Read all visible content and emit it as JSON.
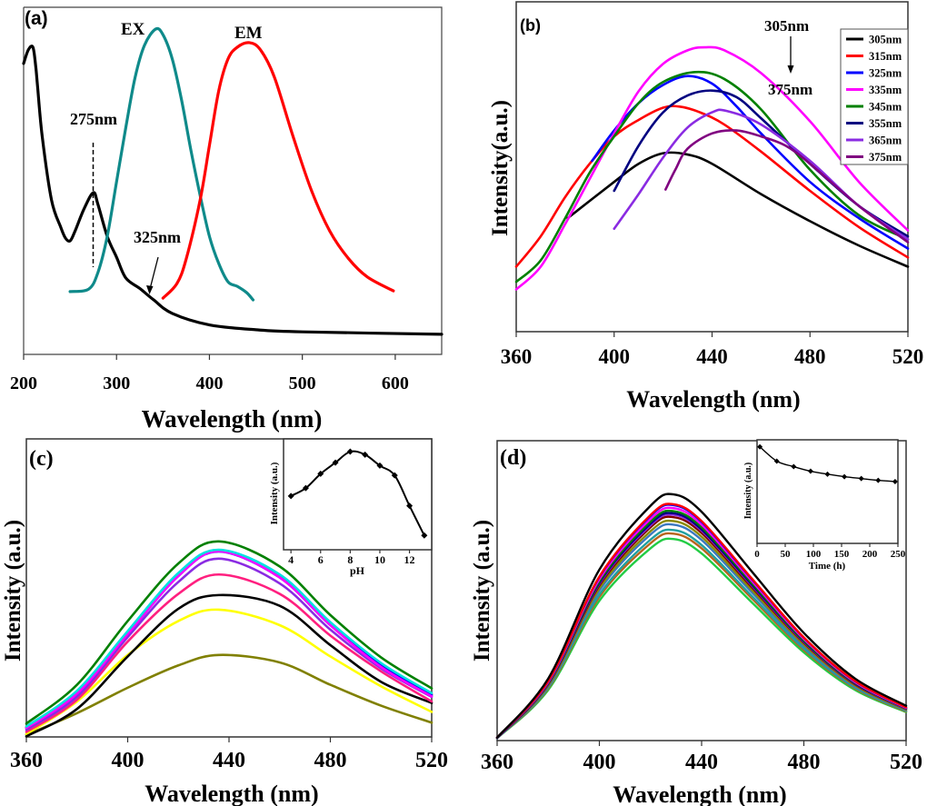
{
  "chart_data": [
    {
      "id": "a",
      "type": "line",
      "panel_label": "(a)",
      "xlabel": "Wavelength (nm)",
      "ylabel": "",
      "xlim": [
        200,
        650
      ],
      "ylim": [
        0,
        100
      ],
      "xticks": [
        200,
        300,
        400,
        500,
        600
      ],
      "grid": false,
      "annotations": {
        "ex": "EX",
        "em": "EM",
        "peak1": "275nm",
        "peak2": "325nm"
      },
      "series": [
        {
          "color": "#000000",
          "x": [
            200,
            205,
            210,
            213,
            215,
            220,
            230,
            240,
            245,
            250,
            255,
            265,
            275,
            280,
            290,
            300,
            310,
            325,
            340,
            360,
            400,
            450,
            500,
            650
          ],
          "y": [
            83.8,
            87.7,
            88.5,
            83,
            77.2,
            62.8,
            44.5,
            36.6,
            33.5,
            32.7,
            35.3,
            41.9,
            46.6,
            43.2,
            34.0,
            28,
            22,
            19,
            15.7,
            11.8,
            8.5,
            7.1,
            6.5,
            5.8
          ]
        },
        {
          "color": "#0f8a8a",
          "x": [
            250,
            270,
            280,
            290,
            300,
            310,
            320,
            330,
            342,
            350,
            360,
            370,
            380,
            390,
            400,
            410,
            420,
            430,
            440,
            447
          ],
          "y": [
            18.1,
            18.8,
            23.6,
            34.0,
            49.7,
            65.4,
            79.8,
            89.0,
            93.7,
            92.1,
            85.1,
            73.3,
            58.9,
            45.8,
            34.0,
            26.2,
            20.9,
            19.6,
            17.8,
            15.7
          ]
        },
        {
          "color": "#ff0000",
          "x": [
            350,
            365,
            375,
            390,
            400,
            410,
            420,
            430,
            443,
            455,
            470,
            490,
            510,
            530,
            550,
            570,
            598
          ],
          "y": [
            16.2,
            20.4,
            27.5,
            44.5,
            60.2,
            75.9,
            85.1,
            88.5,
            89.8,
            87.7,
            79.8,
            62.8,
            47.1,
            35.3,
            27.5,
            22.3,
            18.3
          ]
        }
      ]
    },
    {
      "id": "b",
      "type": "line",
      "panel_label": "(b)",
      "xlabel": "Wavelength (nm)",
      "ylabel": "Intensity(a.u.)",
      "xlim": [
        360,
        520
      ],
      "ylim": [
        0,
        100
      ],
      "xticks": [
        360,
        400,
        440,
        480,
        520
      ],
      "grid": false,
      "legend_position": "top-right",
      "annotations": {
        "from": "305nm",
        "to": "375nm"
      },
      "series": [
        {
          "name": "305nm",
          "color": "#000000",
          "x": [
            381,
            400,
            410,
            420,
            430,
            440,
            460,
            480,
            500,
            520
          ],
          "y": [
            34.4,
            45.4,
            50.9,
            54.1,
            53.7,
            50.9,
            41.7,
            33.5,
            26.1,
            19.7
          ]
        },
        {
          "name": "315nm",
          "color": "#ff0000",
          "x": [
            360,
            370,
            380,
            390,
            400,
            410,
            420,
            427,
            435,
            445,
            460,
            480,
            500,
            520
          ],
          "y": [
            19.7,
            28.9,
            40.8,
            50.9,
            59.2,
            64.2,
            67.9,
            68.2,
            66.5,
            62.8,
            54.6,
            42.7,
            31.7,
            22.5
          ]
        },
        {
          "name": "325nm",
          "color": "#0000ff",
          "x": [
            391,
            400,
            410,
            420,
            430,
            440,
            450,
            460,
            480,
            500,
            520
          ],
          "y": [
            51.8,
            61.0,
            69.3,
            74.8,
            77.5,
            75.2,
            68.3,
            60.1,
            45.4,
            34.4,
            25.2
          ]
        },
        {
          "name": "335nm",
          "color": "#ff00ff",
          "x": [
            360,
            370,
            380,
            390,
            400,
            410,
            420,
            430,
            437,
            445,
            460,
            480,
            500,
            520
          ],
          "y": [
            12.8,
            19.7,
            32.6,
            46.3,
            60.1,
            72.9,
            81.2,
            85.3,
            86.2,
            85.3,
            78.4,
            63.8,
            45.4,
            30.7
          ]
        },
        {
          "name": "345nm",
          "color": "#008000",
          "x": [
            360,
            370,
            380,
            390,
            400,
            410,
            420,
            433,
            445,
            460,
            480,
            500,
            520
          ],
          "y": [
            15.1,
            21.6,
            34.4,
            48.2,
            59.2,
            69.3,
            75.7,
            78.7,
            76.6,
            67.4,
            49.1,
            35.3,
            28.0
          ]
        },
        {
          "name": "355nm",
          "color": "#000080",
          "x": [
            400,
            410,
            420,
            430,
            440,
            450,
            460,
            480,
            500,
            520
          ],
          "y": [
            42.7,
            56.4,
            66.5,
            71.6,
            73.1,
            71.1,
            64.7,
            50.9,
            38.1,
            28.9
          ]
        },
        {
          "name": "365nm",
          "color": "#8a2be2",
          "x": [
            400,
            410,
            420,
            430,
            440,
            446,
            460,
            480,
            500,
            520
          ],
          "y": [
            31.2,
            41.7,
            52.8,
            61.9,
            66.5,
            66.9,
            62.8,
            51.8,
            38.1,
            28.0
          ]
        },
        {
          "name": "375nm",
          "color": "#800080",
          "x": [
            421,
            425,
            430,
            440,
            450,
            460,
            470,
            480,
            500,
            520
          ],
          "y": [
            43.1,
            49.1,
            55.5,
            60.1,
            61.0,
            59.2,
            56.4,
            50.9,
            38.1,
            27.1
          ]
        }
      ]
    },
    {
      "id": "c",
      "type": "line",
      "panel_label": "(c)",
      "xlabel": "Wavelength (nm)",
      "ylabel": "Intensity (a.u.)",
      "xlim": [
        360,
        520
      ],
      "ylim": [
        0,
        100
      ],
      "xticks": [
        360,
        400,
        440,
        480,
        520
      ],
      "grid": false,
      "x": [
        360,
        380,
        400,
        420,
        436,
        460,
        480,
        500,
        520
      ],
      "series": [
        {
          "color": "#808000",
          "y": [
            0.7,
            8,
            16.5,
            24,
            27.5,
            25,
            17.5,
            10.5,
            4.8
          ]
        },
        {
          "color": "#ffff00",
          "y": [
            1.0,
            11.9,
            27.5,
            38.9,
            42.7,
            37.5,
            27,
            17,
            8.4
          ]
        },
        {
          "color": "#000000",
          "y": [
            0.2,
            9.4,
            27,
            43,
            47.6,
            44,
            30.8,
            18.5,
            11.4
          ]
        },
        {
          "color": "#ff1f7f",
          "y": [
            1.7,
            12.5,
            32,
            48,
            54.5,
            48,
            34,
            22,
            11.9
          ]
        },
        {
          "color": "#8a2be2",
          "y": [
            2.4,
            13.5,
            33.5,
            52,
            59.8,
            51.5,
            36,
            23,
            13.4
          ]
        },
        {
          "color": "#ff0000",
          "y": [
            3.2,
            15,
            35,
            54.5,
            62.5,
            54,
            38,
            24.3,
            14.3
          ]
        },
        {
          "color": "#0000ff",
          "y": [
            3,
            14.5,
            34.5,
            54,
            62.2,
            53.5,
            37.5,
            24,
            14
          ]
        },
        {
          "color": "#ff00ff",
          "y": [
            3,
            14.5,
            34.5,
            54,
            62.3,
            53.5,
            37.5,
            23.5,
            13.6
          ]
        },
        {
          "color": "#00e0e0",
          "y": [
            3.5,
            15.5,
            35.5,
            55,
            62.8,
            54.5,
            38.5,
            24.8,
            14.7
          ]
        },
        {
          "color": "#008000",
          "y": [
            4.5,
            17.5,
            38.9,
            58.2,
            65.6,
            57.2,
            40.9,
            26.7,
            16.3
          ]
        }
      ]
    },
    {
      "id": "c-inset",
      "type": "line",
      "markers": "diamond",
      "xlabel": "pH",
      "ylabel": "Intensity (a.u.)",
      "xlim": [
        3.5,
        13.5
      ],
      "ylim": [
        0,
        100
      ],
      "xticks": [
        4,
        6,
        8,
        10,
        12
      ],
      "series": [
        {
          "color": "#000000",
          "x": [
            4,
            5,
            6,
            7,
            8,
            9,
            10,
            11,
            12,
            13
          ],
          "y": [
            48.5,
            55.6,
            68.5,
            78.6,
            88.5,
            85.8,
            75.9,
            67.1,
            39.7,
            12.9
          ]
        }
      ]
    },
    {
      "id": "d",
      "type": "line",
      "panel_label": "(d)",
      "xlabel": "Wavelength (nm)",
      "ylabel": "Intensity (a.u.)",
      "xlim": [
        360,
        520
      ],
      "ylim": [
        0,
        100
      ],
      "xticks": [
        360,
        400,
        440,
        480,
        520
      ],
      "grid": false,
      "x": [
        360,
        380,
        400,
        420,
        429,
        440,
        460,
        480,
        500,
        520
      ],
      "series": [
        {
          "color": "#22cc44",
          "y": [
            0.8,
            16.9,
            46.6,
            64.1,
            67.2,
            62.4,
            45.8,
            29.4,
            16.9,
            9.5
          ]
        },
        {
          "color": "#b8651b",
          "y": [
            0.8,
            17.4,
            47.9,
            65.8,
            69.0,
            64.1,
            47.1,
            30.2,
            17.4,
            9.7
          ]
        },
        {
          "color": "#20a0a0",
          "y": [
            0.8,
            17.7,
            48.7,
            67.0,
            70.2,
            65.2,
            47.9,
            30.7,
            17.7,
            9.9
          ]
        },
        {
          "color": "#3a78c0",
          "y": [
            0.9,
            18.1,
            50.0,
            68.7,
            72.0,
            66.9,
            49.1,
            31.5,
            18.1,
            10.2
          ]
        },
        {
          "color": "#8a8a00",
          "y": [
            0.9,
            18.4,
            50.8,
            69.8,
            73.2,
            68.0,
            49.9,
            32.0,
            18.4,
            10.3
          ]
        },
        {
          "color": "#800000",
          "y": [
            0.9,
            18.8,
            51.7,
            71.1,
            74.5,
            69.2,
            50.8,
            32.6,
            18.8,
            10.5
          ]
        },
        {
          "color": "#8a2be2",
          "y": [
            0.9,
            19.0,
            52.3,
            71.8,
            75.3,
            70.0,
            51.4,
            32.9,
            19.0,
            10.6
          ]
        },
        {
          "color": "#000080",
          "y": [
            0.9,
            19.1,
            52.6,
            72.3,
            75.8,
            70.4,
            51.7,
            33.1,
            19.1,
            10.7
          ]
        },
        {
          "color": "#008000",
          "y": [
            1.0,
            19.3,
            53.1,
            73.0,
            76.5,
            71.1,
            52.2,
            33.4,
            19.3,
            10.8
          ]
        },
        {
          "color": "#ff00ff",
          "y": [
            1.0,
            19.5,
            53.8,
            73.9,
            77.5,
            72.0,
            52.9,
            33.9,
            19.5,
            10.9
          ]
        },
        {
          "color": "#0000ff",
          "y": [
            1.0,
            19.8,
            54.5,
            74.9,
            78.5,
            72.9,
            53.5,
            34.3,
            19.8,
            11.1
          ]
        },
        {
          "color": "#ff0000",
          "y": [
            1.0,
            19.9,
            54.7,
            75.2,
            78.8,
            73.2,
            53.7,
            34.4,
            19.9,
            11.1
          ]
        },
        {
          "color": "#000000",
          "y": [
            1.0,
            20.7,
            57.0,
            78.3,
            82.1,
            76.3,
            56.0,
            35.9,
            20.7,
            11.6
          ]
        }
      ]
    },
    {
      "id": "d-inset",
      "type": "line",
      "markers": "diamond",
      "xlabel": "Time (h)",
      "ylabel": "Intensity (a.u.)",
      "xlim": [
        0,
        250
      ],
      "ylim": [
        0,
        100
      ],
      "xticks": [
        0,
        50,
        100,
        150,
        200,
        250
      ],
      "series": [
        {
          "color": "#000000",
          "x": [
            5,
            35,
            65,
            95,
            125,
            155,
            185,
            215,
            245
          ],
          "y": [
            93.2,
            79.4,
            74.1,
            69.7,
            66.8,
            64.4,
            62.6,
            60.9,
            59.7
          ]
        }
      ]
    }
  ]
}
